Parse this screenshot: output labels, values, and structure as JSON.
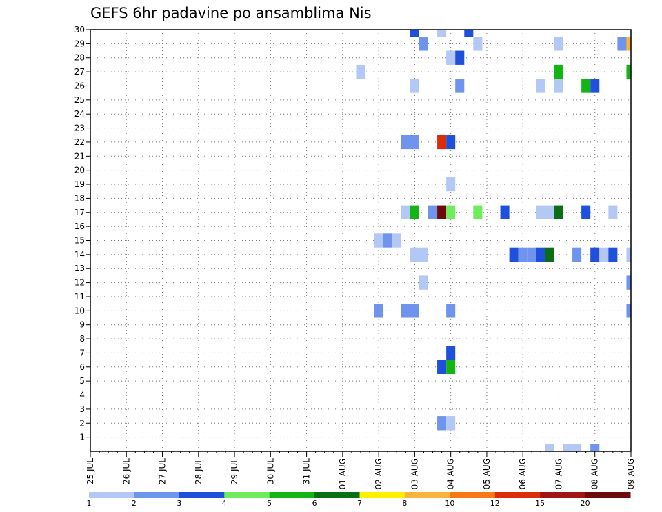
{
  "chart_data": {
    "type": "heatmap",
    "title": "GEFS 6hr padavine po ansamblima Nis",
    "xlabel": "",
    "ylabel": "",
    "x_tick_labels": [
      "25 JUL",
      "26 JUL",
      "27 JUL",
      "28 JUL",
      "29 JUL",
      "30 JUL",
      "31 JUL",
      "01 AUG",
      "02 AUG",
      "03 AUG",
      "04 AUG",
      "05 AUG",
      "06 AUG",
      "07 AUG",
      "08 AUG",
      "09 AUG"
    ],
    "x_range_days": [
      0,
      15
    ],
    "y_tick_labels": [
      1,
      2,
      3,
      4,
      5,
      6,
      7,
      8,
      9,
      10,
      11,
      12,
      13,
      14,
      15,
      16,
      17,
      18,
      19,
      20,
      21,
      22,
      23,
      24,
      25,
      26,
      27,
      28,
      29,
      30
    ],
    "y_range": [
      0,
      30
    ],
    "grid": "dotted",
    "legend": {
      "placement": "bottom",
      "colors": [
        "#b4c8f5",
        "#6e94ee",
        "#1e50dc",
        "#6eec5a",
        "#14b414",
        "#0a6e14",
        "#fff000",
        "#fab43c",
        "#fa7814",
        "#dc2d0a",
        "#a01414",
        "#6e0a0a"
      ],
      "labels": [
        "1",
        "2",
        "3",
        "4",
        "5",
        "6",
        "7",
        "8",
        "10",
        "12",
        "15",
        "20"
      ]
    },
    "cells": [
      {
        "t": 9.0,
        "m": 30,
        "c": 2
      },
      {
        "t": 9.75,
        "m": 30,
        "c": 0
      },
      {
        "t": 10.5,
        "m": 30,
        "c": 2
      },
      {
        "t": 9.25,
        "m": 29,
        "c": 1
      },
      {
        "t": 10.75,
        "m": 29,
        "c": 0
      },
      {
        "t": 13.0,
        "m": 29,
        "c": 0
      },
      {
        "t": 14.75,
        "m": 29,
        "c": 1
      },
      {
        "t": 15.0,
        "m": 29,
        "c": 7
      },
      {
        "t": 10.0,
        "m": 28,
        "c": 0
      },
      {
        "t": 10.25,
        "m": 28,
        "c": 2
      },
      {
        "t": 7.5,
        "m": 27,
        "c": 0
      },
      {
        "t": 13.0,
        "m": 27,
        "c": 4
      },
      {
        "t": 15.0,
        "m": 27,
        "c": 4
      },
      {
        "t": 9.0,
        "m": 26,
        "c": 0
      },
      {
        "t": 10.25,
        "m": 26,
        "c": 1
      },
      {
        "t": 12.5,
        "m": 26,
        "c": 0
      },
      {
        "t": 13.0,
        "m": 26,
        "c": 0
      },
      {
        "t": 13.75,
        "m": 26,
        "c": 4
      },
      {
        "t": 14.0,
        "m": 26,
        "c": 2
      },
      {
        "t": 8.75,
        "m": 22,
        "c": 1
      },
      {
        "t": 9.0,
        "m": 22,
        "c": 1
      },
      {
        "t": 9.75,
        "m": 22,
        "c": 9
      },
      {
        "t": 10.0,
        "m": 22,
        "c": 2
      },
      {
        "t": 10.0,
        "m": 19,
        "c": 0
      },
      {
        "t": 8.75,
        "m": 17,
        "c": 0
      },
      {
        "t": 9.0,
        "m": 17,
        "c": 4
      },
      {
        "t": 9.5,
        "m": 17,
        "c": 1
      },
      {
        "t": 9.75,
        "m": 17,
        "c": 11
      },
      {
        "t": 10.0,
        "m": 17,
        "c": 3
      },
      {
        "t": 10.75,
        "m": 17,
        "c": 3
      },
      {
        "t": 11.5,
        "m": 17,
        "c": 2
      },
      {
        "t": 12.5,
        "m": 17,
        "c": 0
      },
      {
        "t": 12.75,
        "m": 17,
        "c": 0
      },
      {
        "t": 13.0,
        "m": 17,
        "c": 5
      },
      {
        "t": 13.75,
        "m": 17,
        "c": 2
      },
      {
        "t": 14.5,
        "m": 17,
        "c": 0
      },
      {
        "t": 8.0,
        "m": 15,
        "c": 0
      },
      {
        "t": 8.25,
        "m": 15,
        "c": 1
      },
      {
        "t": 8.5,
        "m": 15,
        "c": 0
      },
      {
        "t": 9.0,
        "m": 14,
        "c": 0
      },
      {
        "t": 9.25,
        "m": 14,
        "c": 0
      },
      {
        "t": 11.75,
        "m": 14,
        "c": 2
      },
      {
        "t": 12.0,
        "m": 14,
        "c": 1
      },
      {
        "t": 12.25,
        "m": 14,
        "c": 1
      },
      {
        "t": 12.5,
        "m": 14,
        "c": 2
      },
      {
        "t": 12.75,
        "m": 14,
        "c": 5
      },
      {
        "t": 13.5,
        "m": 14,
        "c": 1
      },
      {
        "t": 14.0,
        "m": 14,
        "c": 2
      },
      {
        "t": 14.25,
        "m": 14,
        "c": 0
      },
      {
        "t": 14.5,
        "m": 14,
        "c": 2
      },
      {
        "t": 15.0,
        "m": 14,
        "c": 0
      },
      {
        "t": 9.25,
        "m": 12,
        "c": 0
      },
      {
        "t": 15.0,
        "m": 12,
        "c": 1
      },
      {
        "t": 8.0,
        "m": 10,
        "c": 1
      },
      {
        "t": 8.75,
        "m": 10,
        "c": 1
      },
      {
        "t": 9.0,
        "m": 10,
        "c": 1
      },
      {
        "t": 10.0,
        "m": 10,
        "c": 1
      },
      {
        "t": 15.0,
        "m": 10,
        "c": 1
      },
      {
        "t": 10.0,
        "m": 7,
        "c": 2
      },
      {
        "t": 9.75,
        "m": 6,
        "c": 2
      },
      {
        "t": 10.0,
        "m": 6,
        "c": 4
      },
      {
        "t": 9.75,
        "m": 2,
        "c": 1
      },
      {
        "t": 10.0,
        "m": 2,
        "c": 0
      },
      {
        "t": 12.75,
        "m": 0,
        "c": 0
      },
      {
        "t": 13.25,
        "m": 0,
        "c": 0
      },
      {
        "t": 13.5,
        "m": 0,
        "c": 0
      },
      {
        "t": 14.0,
        "m": 0,
        "c": 1
      }
    ]
  }
}
